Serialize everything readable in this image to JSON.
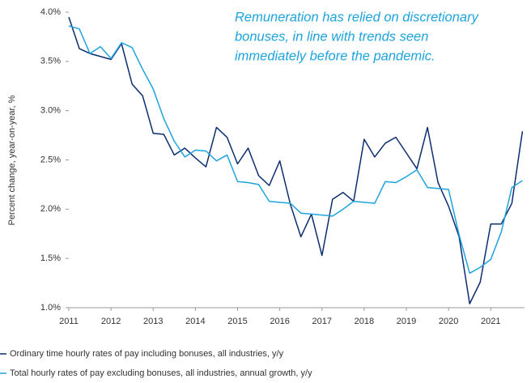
{
  "chart_data": {
    "type": "line",
    "annotation": [
      "Remuneration has relied on discretionary",
      "bonuses, in line with trends seen",
      "immediately before the pandemic."
    ],
    "y_label": "Percent change, year-on-year, %",
    "x": [
      2011,
      2011.25,
      2011.5,
      2011.75,
      2012,
      2012.25,
      2012.5,
      2012.75,
      2013,
      2013.25,
      2013.5,
      2013.75,
      2014,
      2014.25,
      2014.5,
      2014.75,
      2015,
      2015.25,
      2015.5,
      2015.75,
      2016,
      2016.25,
      2016.5,
      2016.75,
      2017,
      2017.25,
      2017.5,
      2017.75,
      2018,
      2018.25,
      2018.5,
      2018.75,
      2019,
      2019.25,
      2019.5,
      2019.75,
      2020,
      2020.25,
      2020.5,
      2020.75,
      2021,
      2021.25,
      2021.5,
      2021.75
    ],
    "series": [
      {
        "name": "Ordinary time hourly rates of pay including bonuses, all industries, y/y",
        "color": "#0b2d6e",
        "values": [
          3.95,
          3.63,
          3.58,
          3.55,
          3.52,
          3.68,
          3.27,
          3.15,
          2.77,
          2.76,
          2.55,
          2.62,
          2.52,
          2.43,
          2.83,
          2.73,
          2.46,
          2.62,
          2.34,
          2.24,
          2.49,
          2.05,
          1.72,
          1.95,
          1.53,
          2.1,
          2.17,
          2.08,
          2.71,
          2.53,
          2.67,
          2.73,
          2.57,
          2.41,
          2.83,
          2.27,
          2.03,
          1.72,
          1.04,
          1.26,
          1.85,
          1.85,
          2.06,
          2.79
        ]
      },
      {
        "name": "Total hourly rates of pay excluding bonuses, all industries, annual growth, y/y",
        "color": "#1ea3dc",
        "values": [
          3.86,
          3.83,
          3.58,
          3.65,
          3.53,
          3.69,
          3.64,
          3.42,
          3.22,
          2.92,
          2.69,
          2.53,
          2.6,
          2.59,
          2.49,
          2.55,
          2.28,
          2.27,
          2.25,
          2.08,
          2.07,
          2.06,
          1.96,
          1.95,
          1.94,
          1.93,
          2.0,
          2.08,
          2.07,
          2.06,
          2.28,
          2.27,
          2.33,
          2.4,
          2.22,
          2.21,
          2.2,
          1.74,
          1.35,
          1.41,
          1.49,
          1.77,
          2.22,
          2.29
        ]
      }
    ],
    "xlim": [
      2011,
      2021.8
    ],
    "xticks": [
      2011,
      2012,
      2013,
      2014,
      2015,
      2016,
      2017,
      2018,
      2019,
      2020,
      2021
    ],
    "ylim": [
      1,
      4
    ],
    "yticks": [
      {
        "value": 1,
        "label": "1.0%"
      },
      {
        "value": 1.5,
        "label": "1.5%"
      },
      {
        "value": 2,
        "label": "2.0%"
      },
      {
        "value": 2.5,
        "label": "2.5%"
      },
      {
        "value": 3,
        "label": "3.0%"
      },
      {
        "value": 3.5,
        "label": "3.5%"
      },
      {
        "value": 4,
        "label": "4.0%"
      }
    ],
    "annotation_color": "#1ea3dc",
    "grid": false
  }
}
